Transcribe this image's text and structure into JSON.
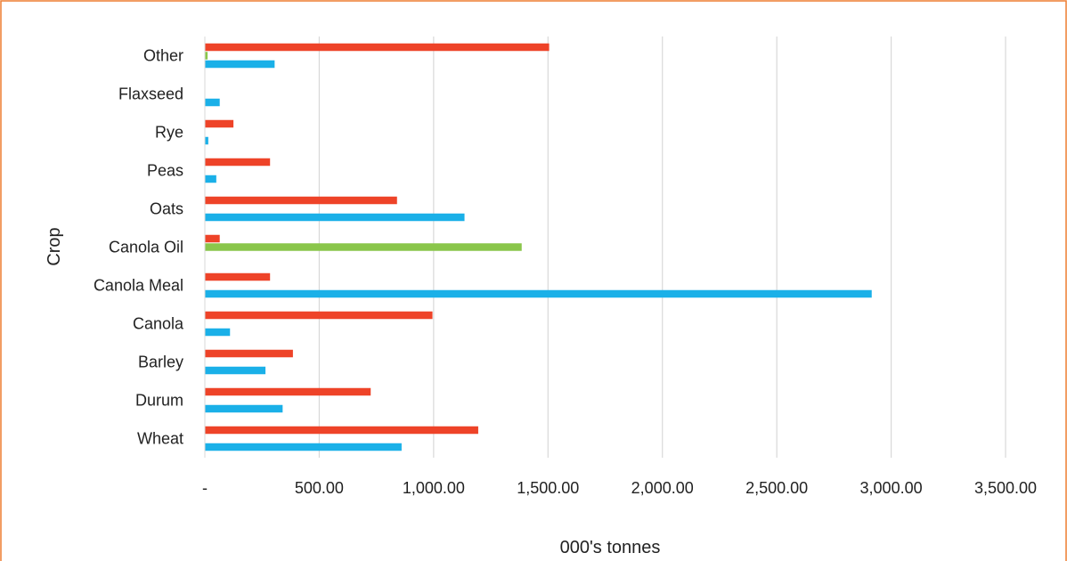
{
  "chart_data": {
    "type": "bar",
    "orientation": "horizontal",
    "categories": [
      "Wheat",
      "Durum",
      "Barley",
      "Canola",
      "Canola Meal",
      "Canola Oil",
      "Oats",
      "Peas",
      "Rye",
      "Flaxseed",
      "Other"
    ],
    "series": [
      {
        "values": [
          860,
          340,
          265,
          110,
          2915,
          0,
          1135,
          50,
          15,
          65,
          305
        ],
        "color": "#1ab0e8"
      },
      {
        "values": [
          0,
          0,
          0,
          0,
          0,
          1385,
          0,
          0,
          0,
          0,
          12
        ],
        "color": "#8ac64b"
      },
      {
        "values": [
          1195,
          725,
          385,
          995,
          285,
          65,
          840,
          285,
          125,
          0,
          1505
        ],
        "color": "#ee4328"
      }
    ],
    "xlabel": "000's tonnes",
    "ylabel": "Crop",
    "xlim": [
      0,
      3500
    ],
    "xticks": [
      0,
      500,
      1000,
      1500,
      2000,
      2500,
      3000,
      3500
    ],
    "xtick_labels": [
      "-",
      "500.00",
      "1,000.00",
      "1,500.00",
      "2,000.00",
      "2,500.00",
      "3,000.00",
      "3,500.00"
    ],
    "grid": "vertical",
    "legend": "none",
    "frame_color": "#ed7d31"
  }
}
